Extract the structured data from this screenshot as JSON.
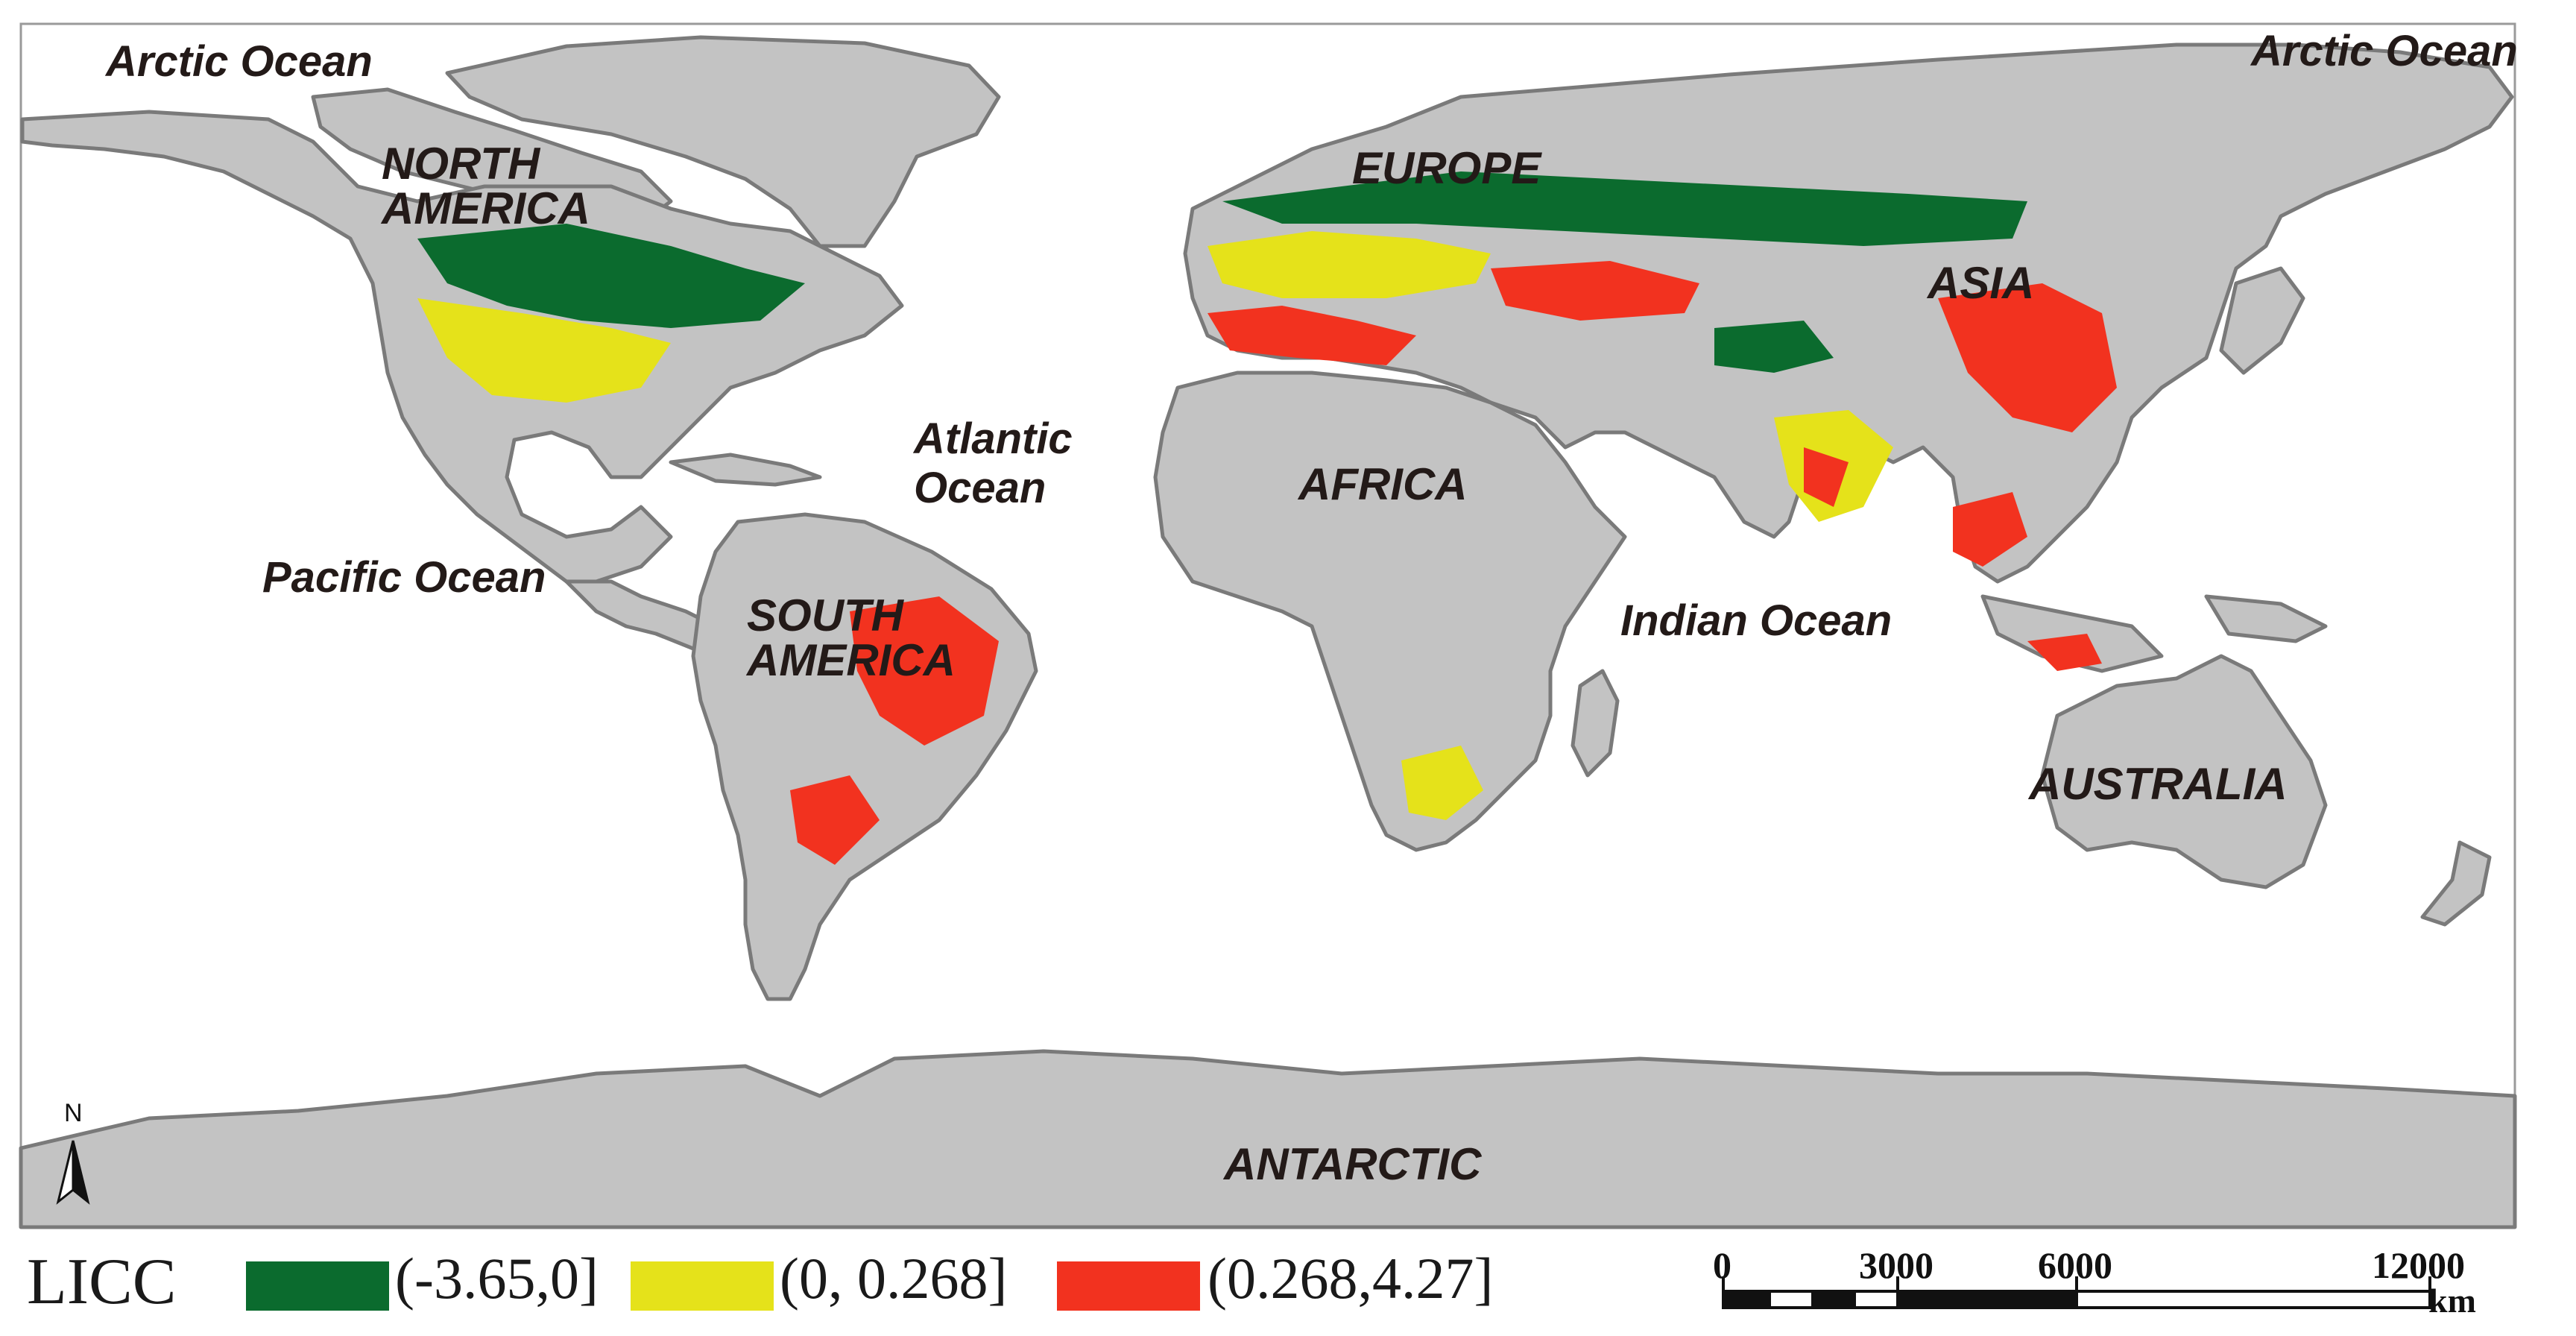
{
  "map": {
    "continents": [
      {
        "id": "north-america",
        "text": "NORTH\nAMERICA"
      },
      {
        "id": "europe",
        "text": "EUROPE"
      },
      {
        "id": "asia",
        "text": "ASIA"
      },
      {
        "id": "africa",
        "text": "AFRICA"
      },
      {
        "id": "south-america",
        "text": "SOUTH\nAMERICA"
      },
      {
        "id": "australia",
        "text": "AUSTRALIA"
      },
      {
        "id": "antarctic",
        "text": "ANTARCTIC"
      }
    ],
    "oceans": {
      "arctic_left": "Arctic Ocean",
      "arctic_right": "Arctic Ocean",
      "atlantic": "Atlantic\nOcean",
      "pacific": "Pacific Ocean",
      "indian": "Indian Ocean"
    },
    "north_arrow": "N",
    "colors": {
      "land": "#c3c3c3",
      "border": "#7a7a7a",
      "background": "#ffffff",
      "text": "#231a18"
    }
  },
  "legend": {
    "title": "LICC",
    "classes": [
      {
        "label": "(-3.65,0]",
        "color": "#0b6b2e"
      },
      {
        "label": "(0, 0.268]",
        "color": "#e5e21a"
      },
      {
        "label": "(0.268,4.27]",
        "color": "#f2321f"
      }
    ]
  },
  "scale_bar": {
    "ticks": [
      "0",
      "3000",
      "6000",
      "12000"
    ],
    "unit": "km"
  }
}
